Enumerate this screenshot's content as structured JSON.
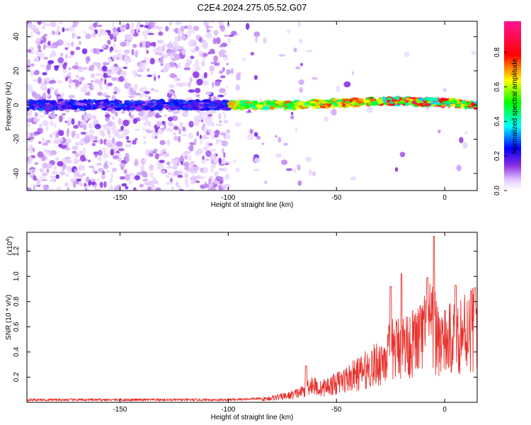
{
  "title": "C2E4.2024.275.05.52.G07",
  "top_chart": {
    "type": "heatmap",
    "xlabel": "Height of straight line (km)",
    "ylabel": "Frequency (Hz)",
    "xlim": [
      -193,
      15
    ],
    "ylim": [
      -50,
      49
    ],
    "xticks": [
      -150,
      -100,
      -50,
      0
    ],
    "yticks": [
      -40,
      -20,
      0,
      20,
      40
    ],
    "colorbar": {
      "label": "Normalized spectral amplitude",
      "range": [
        0,
        0.98
      ],
      "ticks": [
        0.0,
        0.2,
        0.4,
        0.6,
        0.8
      ]
    }
  },
  "bottom_chart": {
    "type": "line",
    "xlabel": "Height of straight line (km)",
    "ylabel": "SNR (10 * v/v)",
    "yscale_label": "(x10",
    "yscale_exp": "4",
    "xlim": [
      -193,
      15
    ],
    "ylim": [
      0,
      1.35
    ],
    "xticks": [
      -150,
      -100,
      -50,
      0
    ],
    "yticks": [
      0.2,
      0.4,
      0.6,
      0.8,
      1.0,
      1.2
    ],
    "line_color": "#e8322e",
    "envelope": {
      "x": [
        -193,
        -120,
        -100,
        -85,
        -72,
        -66,
        -62,
        -58,
        -50,
        -40,
        -30,
        -25,
        -20,
        -15,
        -10,
        -7,
        -5,
        0,
        5,
        10,
        15
      ],
      "y": [
        0.02,
        0.02,
        0.02,
        0.03,
        0.07,
        0.11,
        0.2,
        0.14,
        0.2,
        0.3,
        0.42,
        0.55,
        0.6,
        0.62,
        0.7,
        0.8,
        0.75,
        0.62,
        0.7,
        0.78,
        0.82
      ]
    },
    "peaks": [
      {
        "x": -64,
        "y": 0.29
      },
      {
        "x": -25,
        "y": 0.92
      },
      {
        "x": -20,
        "y": 1.02
      },
      {
        "x": -8,
        "y": 0.99
      },
      {
        "x": -5,
        "y": 1.32
      },
      {
        "x": 5,
        "y": 0.93
      },
      {
        "x": 14,
        "y": 0.91
      }
    ]
  }
}
